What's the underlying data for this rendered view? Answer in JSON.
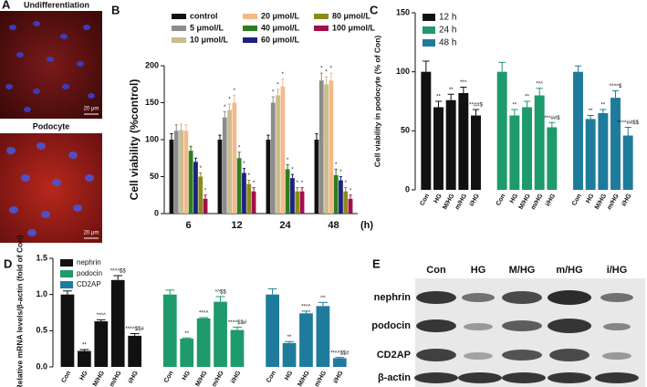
{
  "panel_a": {
    "label": "A",
    "top_title": "Undifferentiation",
    "bottom_title": "Podocyte",
    "scale_top": "20 μm",
    "scale_bottom": "20 μm"
  },
  "chart_data": [
    {
      "label": "B",
      "type": "bar",
      "ylabel": "Cell viability (%control)",
      "xlabel": "(h)",
      "categories": [
        "6",
        "12",
        "24",
        "48"
      ],
      "ylim": [
        0,
        200
      ],
      "yticks": [
        0,
        50,
        100,
        150,
        200
      ],
      "series": [
        {
          "name": "control",
          "color": "#111111",
          "values": [
            100,
            100,
            100,
            100
          ],
          "errors": [
            8,
            6,
            6,
            8
          ],
          "sig": [
            null,
            null,
            null,
            null
          ]
        },
        {
          "name": "5 μmol/L",
          "color": "#8c8c8c",
          "values": [
            112,
            130,
            150,
            180
          ],
          "errors": [
            8,
            8,
            8,
            10
          ],
          "sig": [
            null,
            "*",
            "*",
            "*"
          ]
        },
        {
          "name": "10 μmol/L",
          "color": "#c9bd8e",
          "values": [
            113,
            140,
            160,
            175
          ],
          "errors": [
            8,
            8,
            8,
            10
          ],
          "sig": [
            null,
            "*",
            "*",
            "*"
          ]
        },
        {
          "name": "20 μmol/L",
          "color": "#f4b98a",
          "values": [
            112,
            150,
            172,
            180
          ],
          "errors": [
            8,
            10,
            10,
            10
          ],
          "sig": [
            null,
            "*",
            "*",
            "*"
          ]
        },
        {
          "name": "40 μmol/L",
          "color": "#2f7d1f",
          "values": [
            85,
            75,
            60,
            52
          ],
          "errors": [
            6,
            8,
            6,
            8
          ],
          "sig": [
            null,
            "*",
            "*",
            "*"
          ]
        },
        {
          "name": "60 μmol/L",
          "color": "#1b237e",
          "values": [
            70,
            55,
            48,
            45
          ],
          "errors": [
            5,
            6,
            5,
            5
          ],
          "sig": [
            null,
            "*",
            "*",
            "*"
          ]
        },
        {
          "name": "80 μmol/L",
          "color": "#8b8b1c",
          "values": [
            50,
            40,
            30,
            30
          ],
          "errors": [
            5,
            5,
            5,
            5
          ],
          "sig": [
            "*",
            "*",
            "*",
            "*"
          ]
        },
        {
          "name": "100 μmol/L",
          "color": "#a0104a",
          "values": [
            20,
            30,
            30,
            20
          ],
          "errors": [
            5,
            5,
            5,
            5
          ],
          "sig": [
            "*",
            "*",
            "*",
            "*"
          ]
        }
      ]
    },
    {
      "label": "C",
      "type": "bar",
      "ylabel": "Cell viability in podocyte (% of Con)",
      "ylim": [
        0,
        150
      ],
      "yticks": [
        0,
        50,
        100,
        150
      ],
      "groups": [
        {
          "name": "12 h",
          "color": "#111111",
          "categories": [
            "Con",
            "HG",
            "M/HG",
            "m/HG",
            "i/HG"
          ],
          "values": [
            100,
            70,
            76,
            82,
            63
          ],
          "errors": [
            9,
            5,
            5,
            5,
            5
          ],
          "sig": [
            null,
            "**",
            "**",
            "**^",
            "**##$"
          ]
        },
        {
          "name": "24 h",
          "color": "#1e9a6c",
          "categories": [
            "Con",
            "HG",
            "M/HG",
            "m/HG",
            "i/HG"
          ],
          "values": [
            100,
            63,
            70,
            80,
            53
          ],
          "errors": [
            8,
            5,
            5,
            6,
            4
          ],
          "sig": [
            null,
            "**",
            "**",
            "**^",
            "**^##$"
          ]
        },
        {
          "name": "48 h",
          "color": "#1f7b9c",
          "categories": [
            "Con",
            "HG",
            "M/HG",
            "m/HG",
            "i/HG"
          ],
          "values": [
            100,
            60,
            65,
            78,
            46
          ],
          "errors": [
            5,
            3,
            3,
            6,
            7
          ],
          "sig": [
            null,
            "**",
            "**",
            "**^^$",
            "**^^##$$"
          ]
        }
      ]
    },
    {
      "label": "D",
      "type": "bar",
      "ylabel": "Relative mRNA levels/β-actin (fold of Con)",
      "ylim": [
        0,
        1.5
      ],
      "yticks": [
        {
          "value": 0,
          "label": "0.0"
        },
        0.5,
        {
          "value": 1,
          "label": "1.0"
        },
        1.5
      ],
      "groups": [
        {
          "name": "nephrin",
          "color": "#111111",
          "categories": [
            "Con",
            "HG",
            "M/HG",
            "m/HG",
            "i/HG"
          ],
          "values": [
            1.0,
            0.22,
            0.63,
            1.2,
            0.43
          ],
          "errors": [
            0.05,
            0.02,
            0.02,
            0.06,
            0.03
          ],
          "sig": [
            null,
            "**",
            "**^^",
            "**^^$$",
            "**^^$$#"
          ]
        },
        {
          "name": "podocin",
          "color": "#1e9a6c",
          "categories": [
            "Con",
            "HG",
            "M/HG",
            "m/HG",
            "i/HG"
          ],
          "values": [
            1.0,
            0.39,
            0.67,
            0.9,
            0.51
          ],
          "errors": [
            0.06,
            0.01,
            0.01,
            0.07,
            0.04
          ],
          "sig": [
            null,
            "**",
            "**^^",
            "^^$$",
            "**^^$$#"
          ]
        },
        {
          "name": "CD2AP",
          "color": "#1f7b9c",
          "categories": [
            "Con",
            "HG",
            "M/HG",
            "m/HG",
            "i/HG"
          ],
          "values": [
            1.0,
            0.33,
            0.74,
            0.84,
            0.12
          ],
          "errors": [
            0.08,
            0.02,
            0.03,
            0.05,
            0.01
          ],
          "sig": [
            null,
            "**",
            "**^^",
            "^^",
            "**^^$$#"
          ]
        }
      ]
    }
  ],
  "panel_e": {
    "label": "E",
    "columns": [
      "Con",
      "HG",
      "M/HG",
      "m/HG",
      "i/HG"
    ],
    "rows": [
      "nephrin",
      "podocin",
      "CD2AP",
      "β-actin"
    ]
  }
}
